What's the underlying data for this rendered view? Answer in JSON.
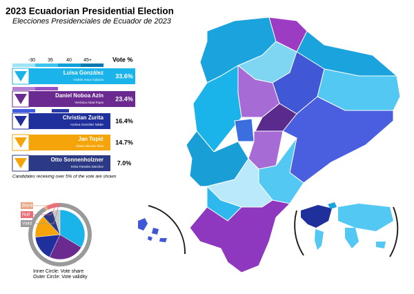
{
  "header": {
    "title": "2023 Ecuadorian Presidential Election",
    "subtitle": "Elecciones Presidenciales de Ecuador de 2023"
  },
  "legend": {
    "scale_labels": [
      "-30",
      "35",
      "40",
      "45+"
    ],
    "value_heading": "Vote %"
  },
  "candidates": [
    {
      "name": "Luisa González",
      "running_mate": "Andrés Arauz Galarza",
      "value": 33.6,
      "value_label": "33.6%",
      "color": "#1ab4ea"
    },
    {
      "name": "Daniel Noboa Azín",
      "running_mate": "Verónica Abad Rojas",
      "value": 23.4,
      "value_label": "23.4%",
      "color": "#6b2a8f"
    },
    {
      "name": "Christian Zurita",
      "running_mate": "Andrea González Náder",
      "value": 16.4,
      "value_label": "16.4%",
      "color": "#1f2f9c"
    },
    {
      "name": "Jan Topić",
      "running_mate": "Diana Jácome Silva",
      "value": 14.7,
      "value_label": "14.7%",
      "color": "#f5a50a"
    },
    {
      "name": "Otto Sonnenholzner",
      "running_mate": "Erika Paredes Sánchez",
      "value": 7.0,
      "value_label": "7.0%",
      "color": "#2c3a86"
    }
  ],
  "note": "Candidates receiving over 5% of the vote are shown",
  "validity": [
    {
      "name": "Blank",
      "value": 1.5,
      "color": "#e8a98a"
    },
    {
      "name": "Null",
      "value": 7.0,
      "color": "#e8707a"
    },
    {
      "name": "Valid",
      "value": 91.5,
      "color": "#9a9a9a"
    }
  ],
  "pie_notes": [
    "Inner Circle: Vote share",
    "Outer Circle: Vote validity"
  ]
}
